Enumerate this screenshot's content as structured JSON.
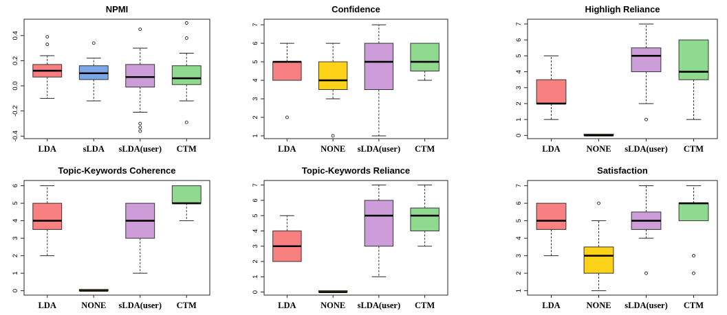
{
  "chart_data": [
    {
      "type": "boxplot",
      "title": "NPMI",
      "categories": [
        "LDA",
        "sLDA",
        "sLDA(user)",
        "CTM"
      ],
      "ylim": [
        -0.42,
        0.53
      ],
      "yticks": [
        -0.4,
        -0.2,
        0.0,
        0.2,
        0.4
      ],
      "ytick_labels": [
        "-0.4",
        "-0.2",
        "0.0",
        "0.2",
        "0.4"
      ],
      "boxes": [
        {
          "color": "#F88080",
          "whislo": -0.1,
          "q1": 0.07,
          "med": 0.12,
          "q3": 0.17,
          "whishi": 0.24,
          "fliers": [
            0.33,
            0.39
          ]
        },
        {
          "color": "#7BA7E6",
          "whislo": -0.12,
          "q1": 0.05,
          "med": 0.1,
          "q3": 0.16,
          "whishi": 0.22,
          "fliers": [
            0.34
          ]
        },
        {
          "color": "#CD9DD9",
          "whislo": -0.21,
          "q1": -0.01,
          "med": 0.07,
          "q3": 0.17,
          "whishi": 0.3,
          "fliers": [
            -0.3,
            -0.33,
            -0.36,
            0.45
          ]
        },
        {
          "color": "#8FDA8F",
          "whislo": -0.12,
          "q1": 0.01,
          "med": 0.06,
          "q3": 0.16,
          "whishi": 0.26,
          "fliers": [
            0.38,
            0.5,
            -0.29
          ]
        }
      ]
    },
    {
      "type": "boxplot",
      "title": "Confidence",
      "categories": [
        "LDA",
        "NONE",
        "sLDA(user)",
        "CTM"
      ],
      "ylim": [
        0.85,
        7.3
      ],
      "yticks": [
        1,
        2,
        3,
        4,
        5,
        6,
        7
      ],
      "ytick_labels": [
        "1",
        "2",
        "3",
        "4",
        "5",
        "6",
        "7"
      ],
      "boxes": [
        {
          "color": "#F88080",
          "whislo": 4,
          "q1": 4,
          "med": 5,
          "q3": 5,
          "whishi": 6,
          "fliers": [
            2
          ]
        },
        {
          "color": "#FFD21A",
          "whislo": 3,
          "q1": 3.5,
          "med": 4,
          "q3": 5,
          "whishi": 6,
          "fliers": [
            1
          ]
        },
        {
          "color": "#CD9DD9",
          "whislo": 1,
          "q1": 3.5,
          "med": 5,
          "q3": 6,
          "whishi": 7,
          "fliers": []
        },
        {
          "color": "#8FDA8F",
          "whislo": 4,
          "q1": 4.5,
          "med": 5,
          "q3": 6,
          "whishi": 6,
          "fliers": []
        }
      ]
    },
    {
      "type": "boxplot",
      "title": "Highligh Reliance",
      "categories": [
        "LDA",
        "NONE",
        "sLDA(user)",
        "CTM"
      ],
      "ylim": [
        -0.2,
        7.3
      ],
      "yticks": [
        0,
        1,
        2,
        3,
        4,
        5,
        6,
        7
      ],
      "ytick_labels": [
        "0",
        "1",
        "2",
        "3",
        "4",
        "5",
        "6",
        "7"
      ],
      "boxes": [
        {
          "color": "#F88080",
          "whislo": 1,
          "q1": 2,
          "med": 2,
          "q3": 3.5,
          "whishi": 5,
          "fliers": []
        },
        {
          "color": "#FFD21A",
          "whislo": 0,
          "q1": 0,
          "med": 0,
          "q3": 0,
          "whishi": 0,
          "fliers": []
        },
        {
          "color": "#CD9DD9",
          "whislo": 2,
          "q1": 4,
          "med": 5,
          "q3": 5.5,
          "whishi": 7,
          "fliers": [
            1
          ]
        },
        {
          "color": "#8FDA8F",
          "whislo": 1,
          "q1": 3.5,
          "med": 4,
          "q3": 6,
          "whishi": 6,
          "fliers": []
        }
      ]
    },
    {
      "type": "boxplot",
      "title": "Topic-Keywords Coherence",
      "categories": [
        "LDA",
        "NONE",
        "sLDA(user)",
        "CTM"
      ],
      "ylim": [
        -0.25,
        6.3
      ],
      "yticks": [
        0,
        1,
        2,
        3,
        4,
        5,
        6
      ],
      "ytick_labels": [
        "0",
        "1",
        "2",
        "3",
        "4",
        "5",
        "6"
      ],
      "boxes": [
        {
          "color": "#F88080",
          "whislo": 2,
          "q1": 3.5,
          "med": 4,
          "q3": 5,
          "whishi": 6,
          "fliers": []
        },
        {
          "color": "#FFD21A",
          "whislo": 0,
          "q1": 0,
          "med": 0,
          "q3": 0,
          "whishi": 0,
          "fliers": []
        },
        {
          "color": "#CD9DD9",
          "whislo": 1,
          "q1": 3,
          "med": 4,
          "q3": 5,
          "whishi": 5,
          "fliers": []
        },
        {
          "color": "#8FDA8F",
          "whislo": 4,
          "q1": 5,
          "med": 5,
          "q3": 6,
          "whishi": 6,
          "fliers": []
        }
      ]
    },
    {
      "type": "boxplot",
      "title": "Topic-Keywords Reliance",
      "categories": [
        "LDA",
        "NONE",
        "sLDA(user)",
        "CTM"
      ],
      "ylim": [
        -0.2,
        7.3
      ],
      "yticks": [
        0,
        1,
        2,
        3,
        4,
        5,
        6,
        7
      ],
      "ytick_labels": [
        "0",
        "1",
        "2",
        "3",
        "4",
        "5",
        "6",
        "7"
      ],
      "boxes": [
        {
          "color": "#F88080",
          "whislo": 2,
          "q1": 2,
          "med": 3,
          "q3": 4,
          "whishi": 5,
          "fliers": []
        },
        {
          "color": "#FFD21A",
          "whislo": 0,
          "q1": 0,
          "med": 0,
          "q3": 0,
          "whishi": 0,
          "fliers": []
        },
        {
          "color": "#CD9DD9",
          "whislo": 1,
          "q1": 3,
          "med": 5,
          "q3": 6,
          "whishi": 7,
          "fliers": []
        },
        {
          "color": "#8FDA8F",
          "whislo": 3,
          "q1": 4,
          "med": 5,
          "q3": 5.5,
          "whishi": 7,
          "fliers": []
        }
      ]
    },
    {
      "type": "boxplot",
      "title": "Satisfaction",
      "categories": [
        "LDA",
        "NONE",
        "sLDA(user)",
        "CTM"
      ],
      "ylim": [
        0.75,
        7.3
      ],
      "yticks": [
        1,
        2,
        3,
        4,
        5,
        6,
        7
      ],
      "ytick_labels": [
        "1",
        "2",
        "3",
        "4",
        "5",
        "6",
        "7"
      ],
      "boxes": [
        {
          "color": "#F88080",
          "whislo": 3,
          "q1": 4.5,
          "med": 5,
          "q3": 6,
          "whishi": 6,
          "fliers": []
        },
        {
          "color": "#FFD21A",
          "whislo": 1,
          "q1": 2,
          "med": 3,
          "q3": 3.5,
          "whishi": 5,
          "fliers": [
            6
          ]
        },
        {
          "color": "#CD9DD9",
          "whislo": 4,
          "q1": 4.5,
          "med": 5,
          "q3": 5.5,
          "whishi": 7,
          "fliers": [
            2
          ]
        },
        {
          "color": "#8FDA8F",
          "whislo": 5,
          "q1": 5,
          "med": 6,
          "q3": 6,
          "whishi": 7,
          "fliers": [
            2,
            3
          ]
        }
      ]
    }
  ]
}
